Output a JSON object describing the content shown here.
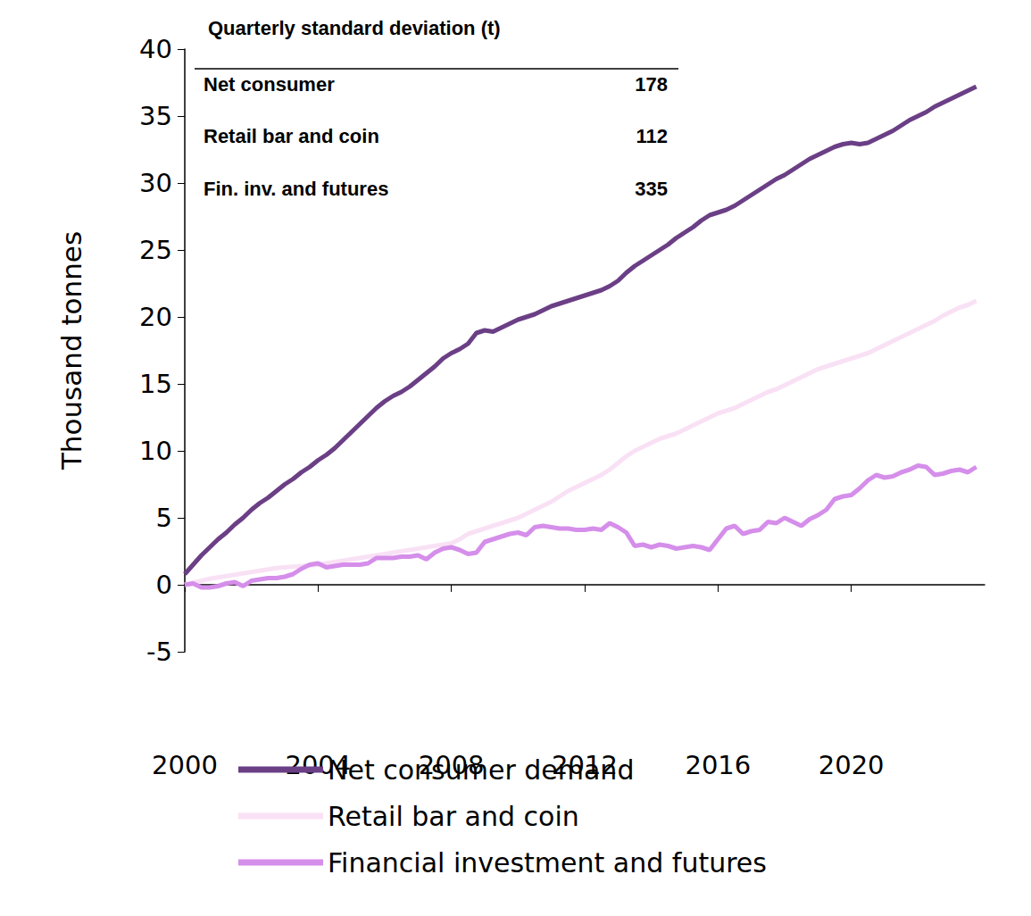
{
  "chart_data": {
    "type": "line",
    "y_label": "Thousand tonnes",
    "x": [
      2000,
      2000.25,
      2000.5,
      2000.75,
      2001,
      2001.25,
      2001.5,
      2001.75,
      2002,
      2002.25,
      2002.5,
      2002.75,
      2003,
      2003.25,
      2003.5,
      2003.75,
      2004,
      2004.25,
      2004.5,
      2004.75,
      2005,
      2005.25,
      2005.5,
      2005.75,
      2006,
      2006.25,
      2006.5,
      2006.75,
      2007,
      2007.25,
      2007.5,
      2007.75,
      2008,
      2008.25,
      2008.5,
      2008.75,
      2009,
      2009.25,
      2009.5,
      2009.75,
      2010,
      2010.25,
      2010.5,
      2010.75,
      2011,
      2011.25,
      2011.5,
      2011.75,
      2012,
      2012.25,
      2012.5,
      2012.75,
      2013,
      2013.25,
      2013.5,
      2013.75,
      2014,
      2014.25,
      2014.5,
      2014.75,
      2015,
      2015.25,
      2015.5,
      2015.75,
      2016,
      2016.25,
      2016.5,
      2016.75,
      2017,
      2017.25,
      2017.5,
      2017.75,
      2018,
      2018.25,
      2018.5,
      2018.75,
      2019,
      2019.25,
      2019.5,
      2019.75,
      2020,
      2020.25,
      2020.5,
      2020.75,
      2021,
      2021.25,
      2021.5,
      2021.75,
      2022,
      2022.25,
      2022.5,
      2022.75,
      2023,
      2023.25,
      2023.5,
      2023.75
    ],
    "series": [
      {
        "name": "Net consumer demand",
        "color": "#6b3f86",
        "values": [
          0.8,
          1.5,
          2.2,
          2.8,
          3.4,
          3.9,
          4.5,
          5.0,
          5.6,
          6.1,
          6.5,
          7.0,
          7.5,
          7.9,
          8.4,
          8.8,
          9.3,
          9.7,
          10.2,
          10.8,
          11.4,
          12.0,
          12.6,
          13.2,
          13.7,
          14.1,
          14.4,
          14.8,
          15.3,
          15.8,
          16.3,
          16.9,
          17.3,
          17.6,
          18.0,
          18.8,
          19.0,
          18.9,
          19.2,
          19.5,
          19.8,
          20.0,
          20.2,
          20.5,
          20.8,
          21.0,
          21.2,
          21.4,
          21.6,
          21.8,
          22.0,
          22.3,
          22.7,
          23.3,
          23.8,
          24.2,
          24.6,
          25.0,
          25.4,
          25.9,
          26.3,
          26.7,
          27.2,
          27.6,
          27.8,
          28.0,
          28.3,
          28.7,
          29.1,
          29.5,
          29.9,
          30.3,
          30.6,
          31.0,
          31.4,
          31.8,
          32.1,
          32.4,
          32.7,
          32.9,
          33.0,
          32.9,
          33.0,
          33.3,
          33.6,
          33.9,
          34.3,
          34.7,
          35.0,
          35.3,
          35.7,
          36.0,
          36.3,
          36.6,
          36.9,
          37.2
        ]
      },
      {
        "name": "Retail bar and coin",
        "color": "#f9e1f5",
        "values": [
          0.0,
          0.15,
          0.3,
          0.45,
          0.55,
          0.65,
          0.75,
          0.85,
          0.95,
          1.05,
          1.15,
          1.25,
          1.3,
          1.35,
          1.4,
          1.45,
          1.5,
          1.6,
          1.7,
          1.8,
          1.9,
          2.0,
          2.1,
          2.2,
          2.3,
          2.4,
          2.5,
          2.6,
          2.7,
          2.8,
          2.9,
          3.0,
          3.1,
          3.4,
          3.8,
          4.0,
          4.2,
          4.4,
          4.6,
          4.8,
          5.0,
          5.3,
          5.6,
          5.9,
          6.2,
          6.6,
          7.0,
          7.3,
          7.6,
          7.9,
          8.2,
          8.6,
          9.1,
          9.6,
          10.0,
          10.3,
          10.6,
          10.9,
          11.1,
          11.3,
          11.6,
          11.9,
          12.2,
          12.5,
          12.8,
          13.0,
          13.2,
          13.5,
          13.8,
          14.1,
          14.4,
          14.6,
          14.9,
          15.2,
          15.5,
          15.8,
          16.1,
          16.3,
          16.5,
          16.7,
          16.9,
          17.1,
          17.3,
          17.6,
          17.9,
          18.2,
          18.5,
          18.8,
          19.1,
          19.4,
          19.7,
          20.1,
          20.4,
          20.7,
          20.9,
          21.2
        ]
      },
      {
        "name": "Financial investment and futures",
        "color": "#d58eea",
        "values": [
          0.0,
          0.1,
          -0.2,
          -0.2,
          -0.1,
          0.1,
          0.2,
          -0.1,
          0.3,
          0.4,
          0.5,
          0.5,
          0.6,
          0.8,
          1.2,
          1.5,
          1.6,
          1.3,
          1.4,
          1.5,
          1.5,
          1.5,
          1.6,
          2.0,
          2.0,
          2.0,
          2.1,
          2.1,
          2.2,
          1.9,
          2.4,
          2.7,
          2.8,
          2.6,
          2.3,
          2.4,
          3.2,
          3.4,
          3.6,
          3.8,
          3.9,
          3.7,
          4.3,
          4.4,
          4.3,
          4.2,
          4.2,
          4.1,
          4.1,
          4.2,
          4.1,
          4.6,
          4.3,
          3.9,
          2.9,
          3.0,
          2.8,
          3.0,
          2.9,
          2.7,
          2.8,
          2.9,
          2.8,
          2.6,
          3.4,
          4.2,
          4.4,
          3.8,
          4.0,
          4.1,
          4.7,
          4.6,
          5.0,
          4.7,
          4.4,
          4.9,
          5.2,
          5.6,
          6.4,
          6.6,
          6.7,
          7.2,
          7.8,
          8.2,
          8.0,
          8.1,
          8.4,
          8.6,
          8.9,
          8.8,
          8.2,
          8.3,
          8.5,
          8.6,
          8.4,
          8.8
        ]
      }
    ],
    "xlim": [
      2000,
      2024
    ],
    "xticks": [
      2000,
      2004,
      2008,
      2012,
      2016,
      2020
    ],
    "ylim": [
      -5,
      40
    ],
    "yticks": [
      -5,
      0,
      5,
      10,
      15,
      20,
      25,
      30,
      35,
      40
    ],
    "grid": false,
    "legend": "bottom",
    "table": {
      "title": "Quarterly standard deviation (t)",
      "rows": [
        {
          "label": "Net consumer",
          "value": 178
        },
        {
          "label": "Retail bar and coin",
          "value": 112
        },
        {
          "label": "Fin. inv. and futures",
          "value": 335
        }
      ]
    }
  }
}
